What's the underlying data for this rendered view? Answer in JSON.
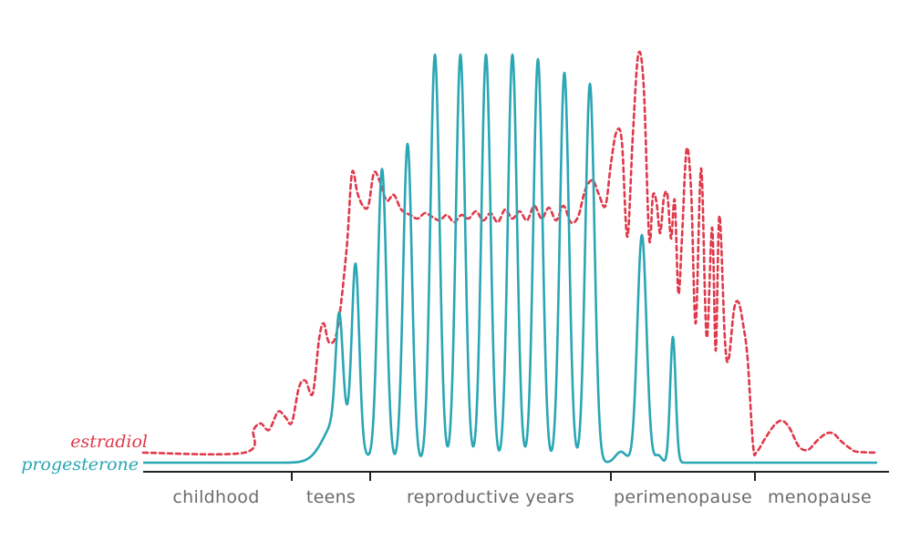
{
  "chart_data": {
    "type": "line",
    "title": "",
    "xlabel": "",
    "ylabel": "",
    "grid": false,
    "series": [
      {
        "name": "estradiol",
        "color": "#e0384a",
        "style": "dashed"
      },
      {
        "name": "progesterone",
        "color": "#2aa6b4",
        "style": "solid"
      }
    ],
    "phases": [
      {
        "label": "childhood"
      },
      {
        "label": "teens"
      },
      {
        "label": "reproductive years"
      },
      {
        "label": "perimenopause"
      },
      {
        "label": "menopause"
      }
    ]
  }
}
